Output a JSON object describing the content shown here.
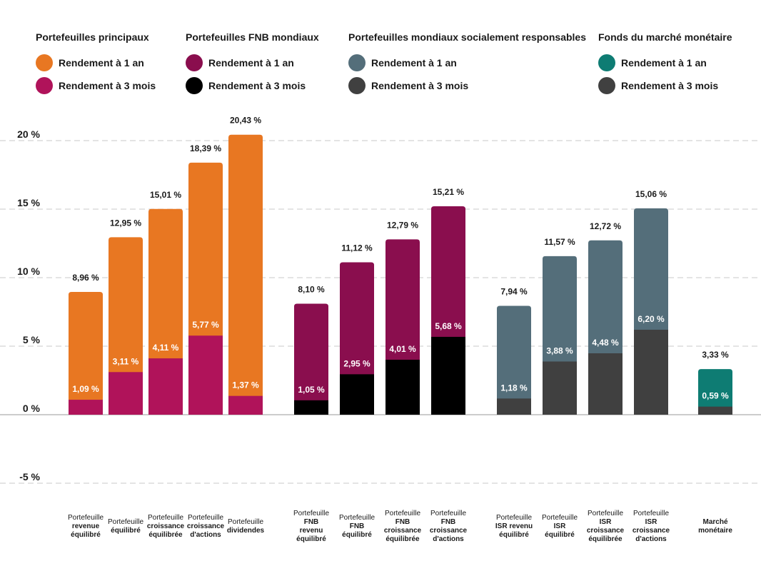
{
  "legend": [
    {
      "title": "Portefeuilles principaux",
      "items": [
        {
          "label": "Rendement à 1 an",
          "color": "#E87722"
        },
        {
          "label": "Rendement à 3 mois",
          "color": "#B0135A"
        }
      ]
    },
    {
      "title": "Portefeuilles FNB mondiaux",
      "items": [
        {
          "label": "Rendement à 1 an",
          "color": "#8A0E4E"
        },
        {
          "label": "Rendement à 3 mois",
          "color": "#000000"
        }
      ]
    },
    {
      "title": "Portefeuilles mondiaux socialement responsables",
      "items": [
        {
          "label": "Rendement à 1 an",
          "color": "#546E7A"
        },
        {
          "label": "Rendement à 3 mois",
          "color": "#404040"
        }
      ]
    },
    {
      "title": "Fonds du marché monétaire",
      "items": [
        {
          "label": "Rendement à 1 an",
          "color": "#0E7C73"
        },
        {
          "label": "Rendement à 3 mois",
          "color": "#404040"
        }
      ]
    }
  ],
  "chart_data": {
    "type": "bar",
    "title": "",
    "xlabel": "",
    "ylabel": "",
    "ylim": [
      -5,
      20
    ],
    "yticks": [
      -5,
      0,
      5,
      10,
      15,
      20
    ],
    "ytick_labels": [
      "-5 %",
      "0 %",
      "5 %",
      "10 %",
      "15 %",
      "20 %"
    ],
    "groups": [
      {
        "name": "Portefeuilles principaux",
        "color_1y": "#E87722",
        "color_3m": "#B0135A",
        "bars": [
          {
            "category": [
              "Portefeuille",
              "revenue",
              "équilibré"
            ],
            "one_year": 8.96,
            "one_year_label": "8,96 %",
            "three_month": 1.09,
            "three_month_label": "1,09 %"
          },
          {
            "category": [
              "Portefeuille",
              "équilibré"
            ],
            "one_year": 12.95,
            "one_year_label": "12,95 %",
            "three_month": 3.11,
            "three_month_label": "3,11 %"
          },
          {
            "category": [
              "Portefeuille",
              "croissance",
              "équilibrée"
            ],
            "one_year": 15.01,
            "one_year_label": "15,01 %",
            "three_month": 4.11,
            "three_month_label": "4,11 %"
          },
          {
            "category": [
              "Portefeuille",
              "croissance",
              "d'actions"
            ],
            "one_year": 18.39,
            "one_year_label": "18,39 %",
            "three_month": 5.77,
            "three_month_label": "5,77 %"
          },
          {
            "category": [
              "Portefeuille",
              "dividendes"
            ],
            "one_year": 20.43,
            "one_year_label": "20,43 %",
            "three_month": 1.37,
            "three_month_label": "1,37 %"
          }
        ]
      },
      {
        "name": "Portefeuilles FNB mondiaux",
        "color_1y": "#8A0E4E",
        "color_3m": "#000000",
        "bars": [
          {
            "category": [
              "Portefeuille",
              "FNB",
              "revenu",
              "équilibré"
            ],
            "one_year": 8.1,
            "one_year_label": "8,10 %",
            "three_month": 1.05,
            "three_month_label": "1,05 %"
          },
          {
            "category": [
              "Portefeuille",
              "FNB",
              "équilibré"
            ],
            "one_year": 11.12,
            "one_year_label": "11,12 %",
            "three_month": 2.95,
            "three_month_label": "2,95 %"
          },
          {
            "category": [
              "Portefeuille",
              "FNB",
              "croissance",
              "équilibrée"
            ],
            "one_year": 12.79,
            "one_year_label": "12,79 %",
            "three_month": 4.01,
            "three_month_label": "4,01 %"
          },
          {
            "category": [
              "Portefeuille",
              "FNB",
              "croissance",
              "d'actions"
            ],
            "one_year": 15.21,
            "one_year_label": "15,21 %",
            "three_month": 5.68,
            "three_month_label": "5,68 %"
          }
        ]
      },
      {
        "name": "Portefeuilles mondiaux socialement responsables",
        "color_1y": "#546E7A",
        "color_3m": "#404040",
        "bars": [
          {
            "category": [
              "Portefeuille",
              "ISR revenu",
              "équilibré"
            ],
            "one_year": 7.94,
            "one_year_label": "7,94 %",
            "three_month": 1.18,
            "three_month_label": "1,18 %"
          },
          {
            "category": [
              "Portefeuille",
              "ISR",
              "équilibré"
            ],
            "one_year": 11.57,
            "one_year_label": "11,57 %",
            "three_month": 3.88,
            "three_month_label": "3,88 %"
          },
          {
            "category": [
              "Portefeuille",
              "ISR",
              "croissance",
              "équilibrée"
            ],
            "one_year": 12.72,
            "one_year_label": "12,72 %",
            "three_month": 4.48,
            "three_month_label": "4,48 %"
          },
          {
            "category": [
              "Portefeuille",
              "ISR",
              "croissance",
              "d'actions"
            ],
            "one_year": 15.06,
            "one_year_label": "15,06 %",
            "three_month": 6.2,
            "three_month_label": "6,20 %"
          }
        ]
      },
      {
        "name": "Fonds du marché monétaire",
        "color_1y": "#0E7C73",
        "color_3m": "#404040",
        "bars": [
          {
            "category": [
              "Marché",
              "monétaire"
            ],
            "one_year": 3.33,
            "one_year_label": "3,33 %",
            "three_month": 0.59,
            "three_month_label": "0,59 %"
          }
        ]
      }
    ]
  }
}
